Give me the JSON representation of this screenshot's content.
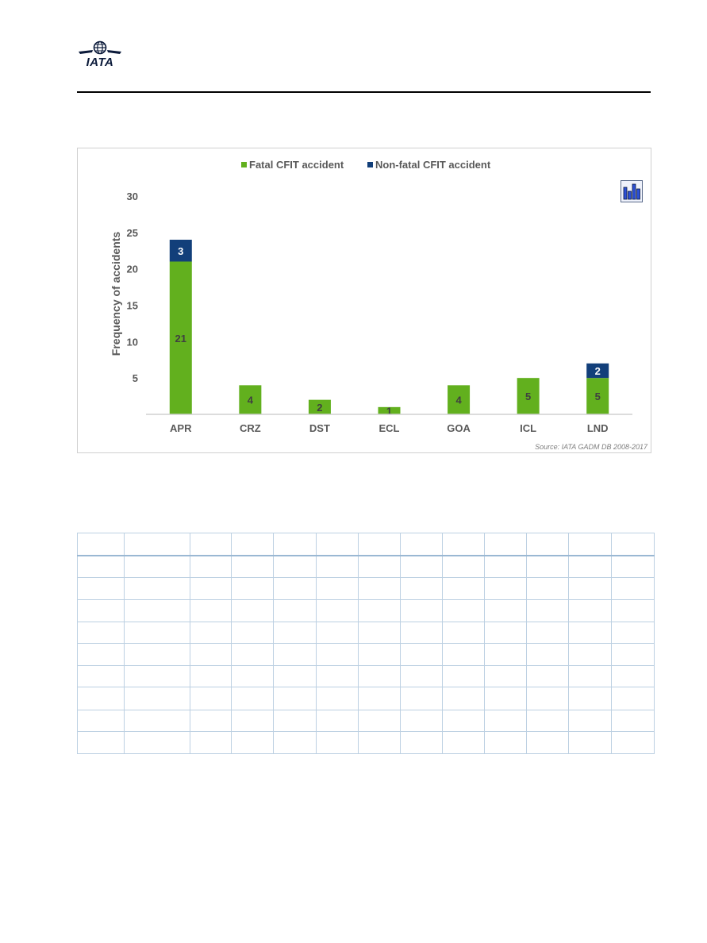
{
  "header": {
    "logo_text": "IATA"
  },
  "chart_data": {
    "type": "bar",
    "stacked": true,
    "categories": [
      "APR",
      "CRZ",
      "DST",
      "ECL",
      "GOA",
      "ICL",
      "LND"
    ],
    "series": [
      {
        "name": "Fatal CFIT accident",
        "color": "#62b01e",
        "values": [
          21,
          4,
          2,
          1,
          4,
          5,
          5
        ]
      },
      {
        "name": "Non-fatal CFIT accident",
        "color": "#123f7a",
        "values": [
          3,
          0,
          0,
          0,
          0,
          0,
          2
        ]
      }
    ],
    "data_labels": [
      [
        "21",
        "4",
        "2",
        "1",
        "4",
        "5",
        "5"
      ],
      [
        "3",
        "",
        "",
        "",
        "",
        "",
        "2"
      ]
    ],
    "ylabel": "Frequency of accidents",
    "xlabel": "",
    "ylim": [
      0,
      30
    ],
    "yticks": [
      5,
      10,
      15,
      20,
      25,
      30
    ],
    "grid": false,
    "legend_position": "top",
    "source": "Source: IATA GADM DB 2008-2017",
    "icon": "bar-chart-icon"
  },
  "table": {
    "rows": 10,
    "columns": 13
  }
}
